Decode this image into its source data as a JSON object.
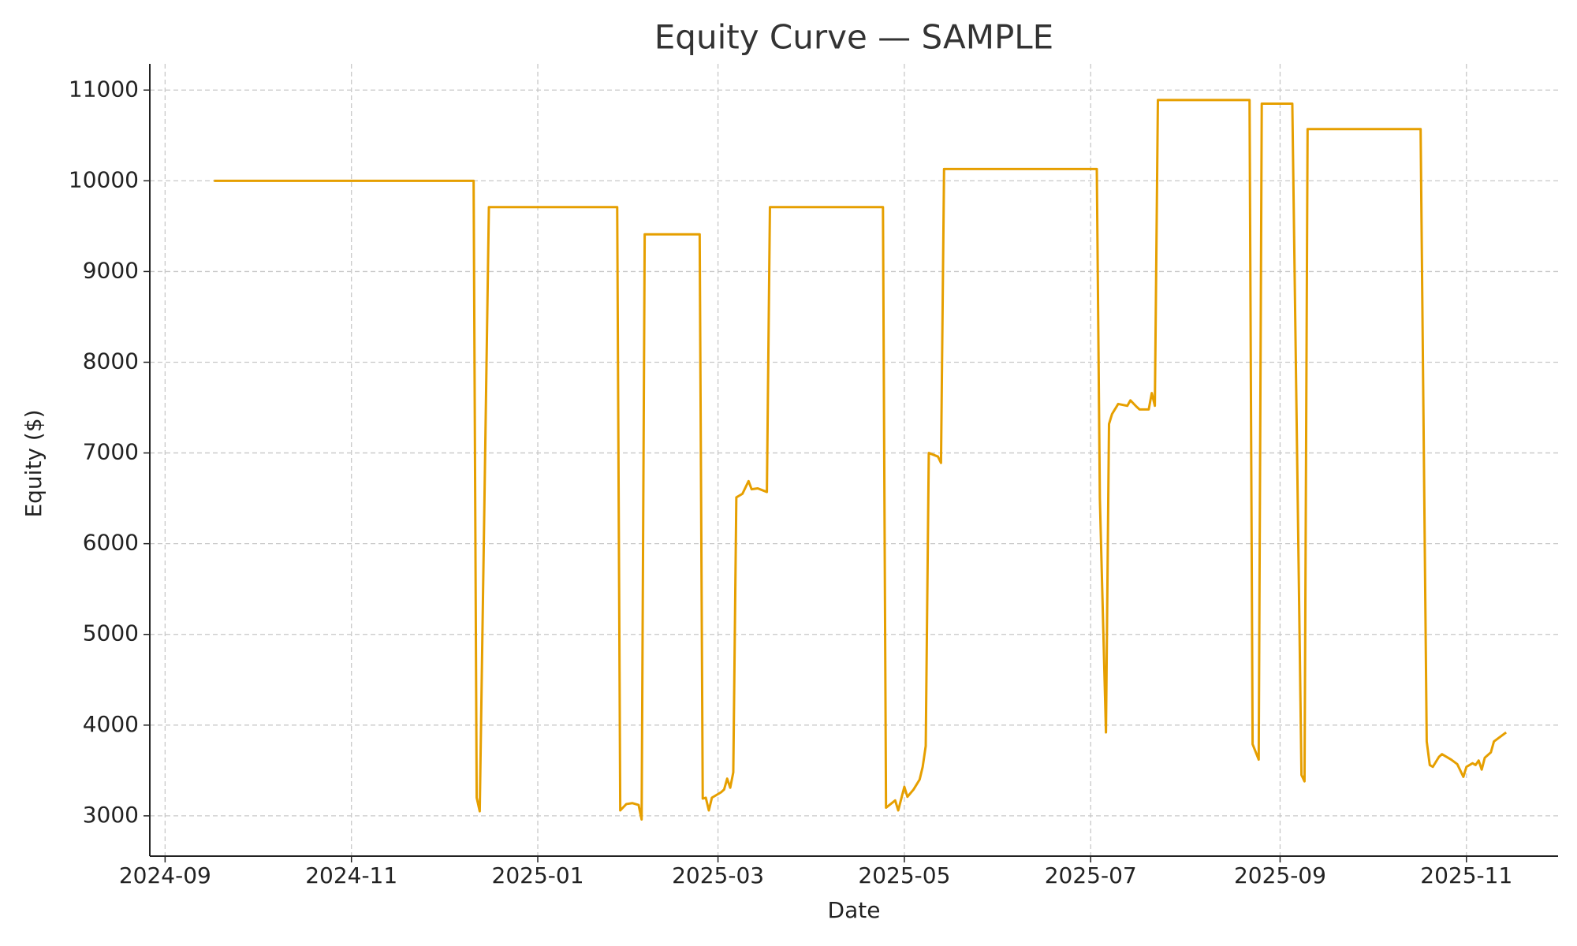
{
  "chart_data": {
    "type": "line",
    "title": "Equity Curve — SAMPLE",
    "x_label": "Date",
    "y_label": "Equity ($)",
    "color": "#e69f00",
    "grid": true,
    "x": [
      "2024-09-17",
      "2024-12-11",
      "2024-12-12",
      "2024-12-13",
      "2024-12-16",
      "2025-01-27",
      "2025-01-28",
      "2025-01-30",
      "2025-02-01",
      "2025-02-03",
      "2025-02-04",
      "2025-02-05",
      "2025-02-23",
      "2025-02-24",
      "2025-02-25",
      "2025-02-26",
      "2025-02-27",
      "2025-03-02",
      "2025-03-03",
      "2025-03-04",
      "2025-03-05",
      "2025-03-06",
      "2025-03-07",
      "2025-03-09",
      "2025-03-11",
      "2025-03-12",
      "2025-03-14",
      "2025-03-17",
      "2025-03-18",
      "2025-04-24",
      "2025-04-25",
      "2025-04-28",
      "2025-04-29",
      "2025-05-01",
      "2025-05-02",
      "2025-05-04",
      "2025-05-06",
      "2025-05-07",
      "2025-05-08",
      "2025-05-09",
      "2025-05-12",
      "2025-05-13",
      "2025-05-14",
      "2025-07-03",
      "2025-07-04",
      "2025-07-06",
      "2025-07-07",
      "2025-07-08",
      "2025-07-10",
      "2025-07-13",
      "2025-07-14",
      "2025-07-16",
      "2025-07-17",
      "2025-07-20",
      "2025-07-21",
      "2025-07-22",
      "2025-07-23",
      "2025-08-22",
      "2025-08-23",
      "2025-08-25",
      "2025-08-26",
      "2025-09-05",
      "2025-09-08",
      "2025-09-09",
      "2025-09-10",
      "2025-10-17",
      "2025-10-19",
      "2025-10-20",
      "2025-10-21",
      "2025-10-23",
      "2025-10-24",
      "2025-10-27",
      "2025-10-29",
      "2025-10-30",
      "2025-10-31",
      "2025-11-01",
      "2025-11-03",
      "2025-11-04",
      "2025-11-05",
      "2025-11-06",
      "2025-11-07",
      "2025-11-09",
      "2025-11-10",
      "2025-11-14"
    ],
    "values": [
      10000,
      10000,
      3200,
      3050,
      9710,
      9710,
      3060,
      3130,
      3140,
      3120,
      2960,
      9410,
      9410,
      3190,
      3200,
      3060,
      3200,
      3260,
      3290,
      3410,
      3310,
      3480,
      6510,
      6550,
      6690,
      6600,
      6610,
      6570,
      9710,
      9710,
      3090,
      3170,
      3060,
      3320,
      3210,
      3290,
      3400,
      3540,
      3770,
      7000,
      6960,
      6890,
      10130,
      10130,
      6500,
      3920,
      7320,
      7430,
      7540,
      7520,
      7580,
      7510,
      7480,
      7480,
      7660,
      7520,
      10890,
      10890,
      3790,
      3620,
      10850,
      10850,
      3450,
      3380,
      10570,
      10570,
      3820,
      3560,
      3540,
      3650,
      3680,
      3620,
      3570,
      3500,
      3430,
      3540,
      3580,
      3560,
      3610,
      3510,
      3640,
      3700,
      3820,
      3920
    ],
    "xlim": [
      "2024-08-27",
      "2025-12-01"
    ],
    "xticks": [
      {
        "value": "2024-09-01",
        "label": "2024-09"
      },
      {
        "value": "2024-11-01",
        "label": "2024-11"
      },
      {
        "value": "2025-01-01",
        "label": "2025-01"
      },
      {
        "value": "2025-03-01",
        "label": "2025-03"
      },
      {
        "value": "2025-05-01",
        "label": "2025-05"
      },
      {
        "value": "2025-07-01",
        "label": "2025-07"
      },
      {
        "value": "2025-09-01",
        "label": "2025-09"
      },
      {
        "value": "2025-11-01",
        "label": "2025-11"
      }
    ],
    "ylim": [
      2556,
      11289
    ],
    "yticks": [
      3000,
      4000,
      5000,
      6000,
      7000,
      8000,
      9000,
      10000,
      11000
    ]
  }
}
